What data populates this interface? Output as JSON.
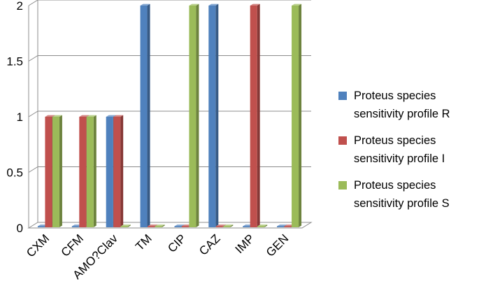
{
  "chart_data": {
    "type": "bar",
    "categories": [
      "CXM",
      "CFM",
      "AMO?Clav",
      "TM",
      "CIP",
      "CAZ",
      "IMP",
      "GEN"
    ],
    "series": [
      {
        "name": "Proteus species sensitivity profile R",
        "name_lines": [
          "Proteus species",
          "sensitivity profile R"
        ],
        "color": "#4F81BD",
        "values": [
          0,
          0,
          1,
          2,
          0,
          2,
          0,
          0
        ]
      },
      {
        "name": "Proteus species sensitivity profile I",
        "name_lines": [
          "Proteus species",
          "sensitivity profile I"
        ],
        "color": "#C0504D",
        "values": [
          1,
          1,
          1,
          0,
          0,
          0,
          2,
          0
        ]
      },
      {
        "name": "Proteus species sensitivity profile S",
        "name_lines": [
          "Proteus species",
          "sensitivity profile S"
        ],
        "color": "#9BBB59",
        "values": [
          1,
          1,
          0,
          0,
          2,
          0,
          0,
          2
        ]
      }
    ],
    "ylim": [
      0,
      2
    ],
    "yticks": [
      "0",
      "0.5",
      "1",
      "1.5",
      "2"
    ],
    "grid": true,
    "legend": "right",
    "chart_style": "3d-clustered-column"
  }
}
